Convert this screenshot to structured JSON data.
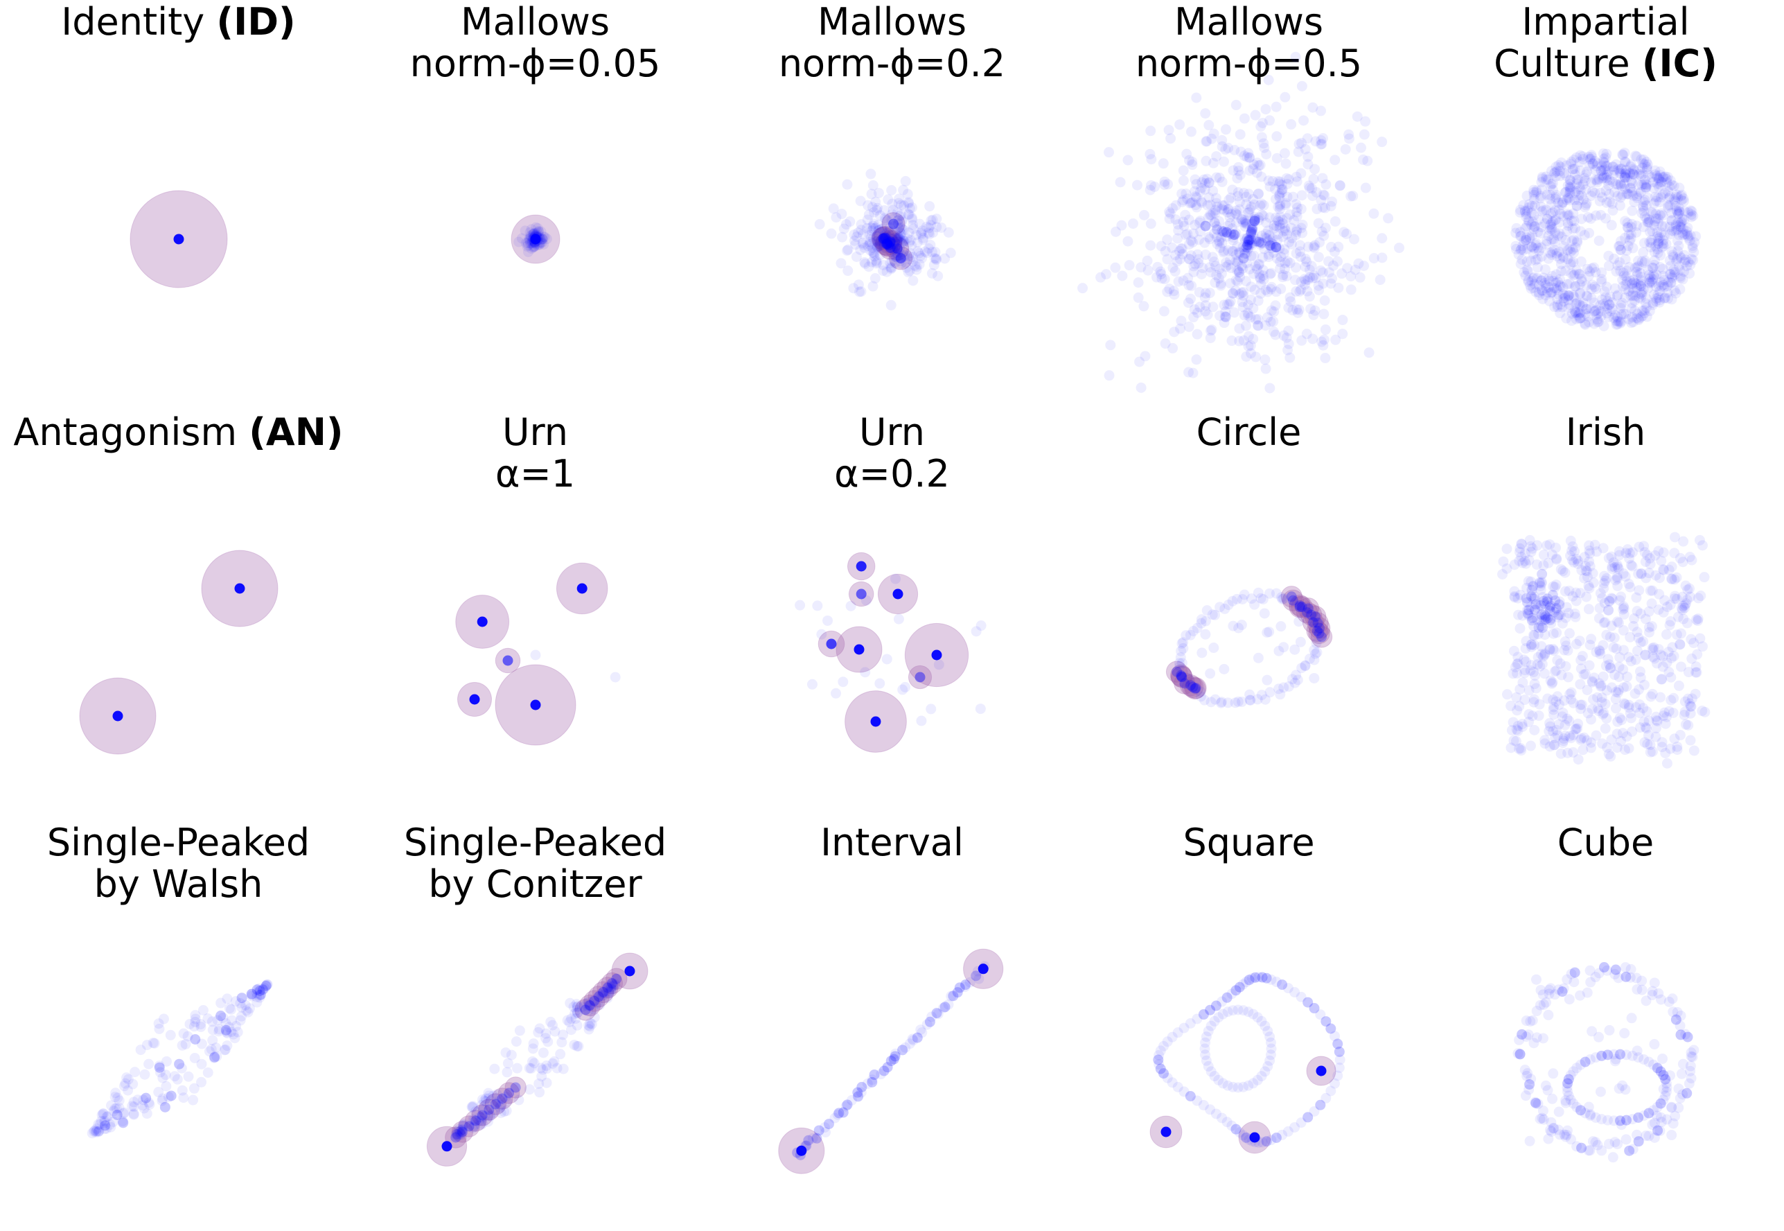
{
  "colors": {
    "point": "#0000ff",
    "point_alpha": 0.07,
    "halo": "#9b59a6",
    "halo_alpha": 0.3
  },
  "chart_data": [
    {
      "type": "scatter",
      "name": "identity",
      "title_lines": [
        [
          {
            "text": "Identity "
          },
          {
            "text": "(ID)",
            "bold": true
          }
        ]
      ],
      "pattern": "single",
      "seed": 1
    },
    {
      "type": "scatter",
      "name": "mallows-005",
      "title_lines": [
        [
          {
            "text": "Mallows"
          }
        ],
        [
          {
            "text": "norm-ϕ=0.05"
          }
        ]
      ],
      "pattern": "mallows",
      "spread": 0.05,
      "seed": 2
    },
    {
      "type": "scatter",
      "name": "mallows-02",
      "title_lines": [
        [
          {
            "text": "Mallows"
          }
        ],
        [
          {
            "text": "norm-ϕ=0.2"
          }
        ]
      ],
      "pattern": "mallows",
      "spread": 0.2,
      "seed": 3
    },
    {
      "type": "scatter",
      "name": "mallows-05",
      "title_lines": [
        [
          {
            "text": "Mallows"
          }
        ],
        [
          {
            "text": "norm-ϕ=0.5"
          }
        ]
      ],
      "pattern": "mallows",
      "spread": 0.5,
      "seed": 4
    },
    {
      "type": "scatter",
      "name": "impartial-culture",
      "title_lines": [
        [
          {
            "text": "Impartial"
          }
        ],
        [
          {
            "text": "Culture "
          },
          {
            "text": "(IC)",
            "bold": true
          }
        ]
      ],
      "pattern": "disk",
      "seed": 5
    },
    {
      "type": "scatter",
      "name": "antagonism",
      "title_lines": [
        [
          {
            "text": "Antagonism "
          },
          {
            "text": "(AN)",
            "bold": true
          }
        ]
      ],
      "pattern": "antagonism",
      "seed": 6
    },
    {
      "type": "scatter",
      "name": "urn-1",
      "title_lines": [
        [
          {
            "text": "Urn"
          }
        ],
        [
          {
            "text": "α=1"
          }
        ]
      ],
      "pattern": "urn1",
      "seed": 7
    },
    {
      "type": "scatter",
      "name": "urn-02",
      "title_lines": [
        [
          {
            "text": "Urn"
          }
        ],
        [
          {
            "text": "α=0.2"
          }
        ]
      ],
      "pattern": "urn02",
      "seed": 8
    },
    {
      "type": "scatter",
      "name": "circle",
      "title_lines": [
        [
          {
            "text": "Circle"
          }
        ]
      ],
      "pattern": "circle",
      "seed": 9
    },
    {
      "type": "scatter",
      "name": "irish",
      "title_lines": [
        [
          {
            "text": "Irish"
          }
        ]
      ],
      "pattern": "irish",
      "seed": 10
    },
    {
      "type": "scatter",
      "name": "sp-walsh",
      "title_lines": [
        [
          {
            "text": "Single-Peaked"
          }
        ],
        [
          {
            "text": "by Walsh"
          }
        ]
      ],
      "pattern": "walsh",
      "seed": 11
    },
    {
      "type": "scatter",
      "name": "sp-conitzer",
      "title_lines": [
        [
          {
            "text": "Single-Peaked"
          }
        ],
        [
          {
            "text": "by Conitzer"
          }
        ]
      ],
      "pattern": "conitzer",
      "seed": 12
    },
    {
      "type": "scatter",
      "name": "interval",
      "title_lines": [
        [
          {
            "text": "Interval"
          }
        ]
      ],
      "pattern": "interval",
      "seed": 13
    },
    {
      "type": "scatter",
      "name": "square",
      "title_lines": [
        [
          {
            "text": "Square"
          }
        ]
      ],
      "pattern": "square",
      "seed": 14
    },
    {
      "type": "scatter",
      "name": "cube",
      "title_lines": [
        [
          {
            "text": "Cube"
          }
        ]
      ],
      "pattern": "cube",
      "seed": 15
    }
  ]
}
